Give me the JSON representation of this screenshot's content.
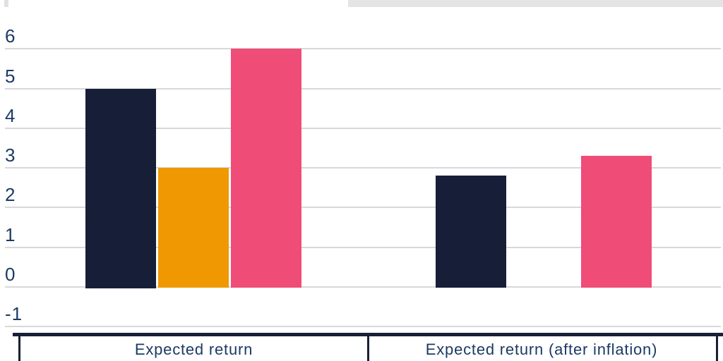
{
  "chart_data": {
    "type": "bar",
    "title": "",
    "xlabel": "",
    "ylabel": "",
    "categories": [
      "Expected return",
      "Expected return (after inflation)"
    ],
    "series": [
      {
        "name": "dark-navy-series",
        "color": "#171f38",
        "values": [
          5.0,
          2.8
        ]
      },
      {
        "name": "orange-series",
        "color": "#f09802",
        "values": [
          3.0,
          0.0
        ]
      },
      {
        "name": "pink-series",
        "color": "#ef4d78",
        "values": [
          6.0,
          3.3
        ]
      }
    ],
    "y_ticks": [
      6,
      5,
      4,
      3,
      2,
      1,
      0,
      -1
    ],
    "ylim": [
      -1,
      6
    ],
    "grid": true,
    "legend_position": "none"
  },
  "colors": {
    "axis_text": "#1c3a64",
    "gridline": "#d8d8db",
    "table_border": "#182037",
    "top_strip": "#e4e4e4",
    "background": "#ffffff"
  }
}
